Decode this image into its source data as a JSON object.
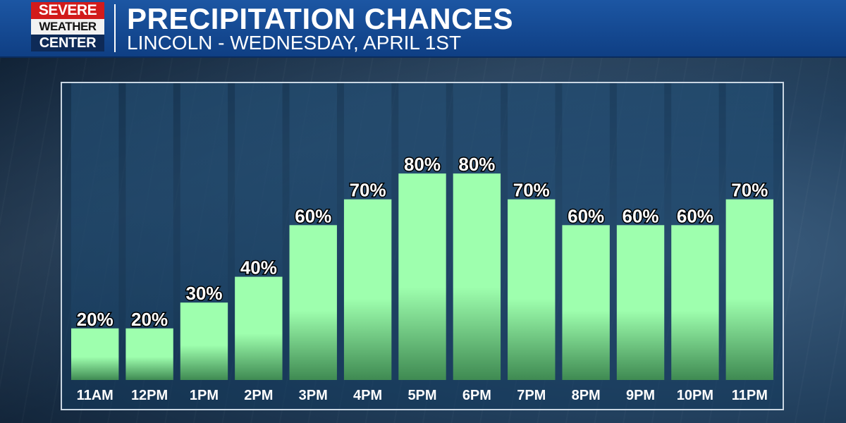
{
  "header": {
    "logo": {
      "line1": "SEVERE",
      "line2": "WEATHER",
      "line3": "CENTER"
    },
    "title": "PRECIPITATION CHANCES",
    "subtitle": "LINCOLN - WEDNESDAY, APRIL 1ST"
  },
  "colors": {
    "header_blue": "#1c56a3",
    "bar_top": "#9effae",
    "bar_bottom": "#3f8a52",
    "logo_red": "#d21b1b"
  },
  "chart_data": {
    "type": "bar",
    "title": "PRECIPITATION CHANCES",
    "subtitle": "LINCOLN - WEDNESDAY, APRIL 1ST",
    "categories": [
      "11AM",
      "12PM",
      "1PM",
      "2PM",
      "3PM",
      "4PM",
      "5PM",
      "6PM",
      "7PM",
      "8PM",
      "9PM",
      "10PM",
      "11PM"
    ],
    "values": [
      20,
      20,
      30,
      40,
      60,
      70,
      80,
      80,
      70,
      60,
      60,
      60,
      70
    ],
    "value_labels": [
      "20%",
      "20%",
      "30%",
      "40%",
      "60%",
      "70%",
      "80%",
      "80%",
      "70%",
      "60%",
      "60%",
      "60%",
      "70%"
    ],
    "unit": "%",
    "ylim": [
      0,
      115
    ],
    "grid": false,
    "legend": "none"
  }
}
